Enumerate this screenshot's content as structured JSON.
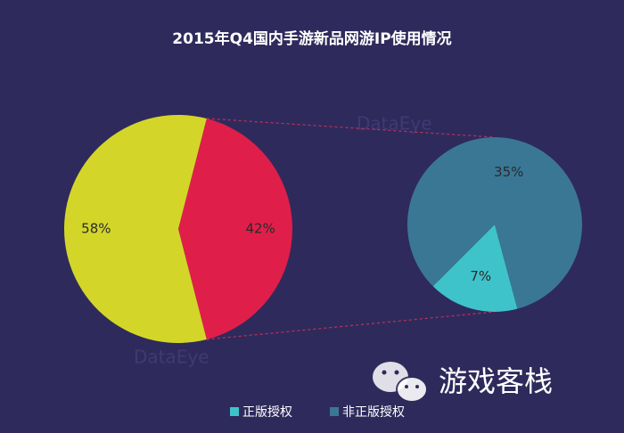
{
  "chart_data": {
    "type": "pie_of_pie",
    "title": "2015年Q4国内手游新品网游IP使用情况",
    "main": {
      "values": [
        58,
        42
      ],
      "value_labels": [
        "58%",
        "42%"
      ],
      "colors": [
        "#d3d629",
        "#df1f49"
      ]
    },
    "secondary": {
      "categories": [
        "正版授权",
        "非正版授权"
      ],
      "values": [
        7,
        35
      ],
      "value_labels": [
        "7%",
        "35%"
      ],
      "colors": [
        "#3fc3cb",
        "#3a7795"
      ]
    },
    "watermark": "游戏客栈",
    "brand": "DataEye"
  }
}
